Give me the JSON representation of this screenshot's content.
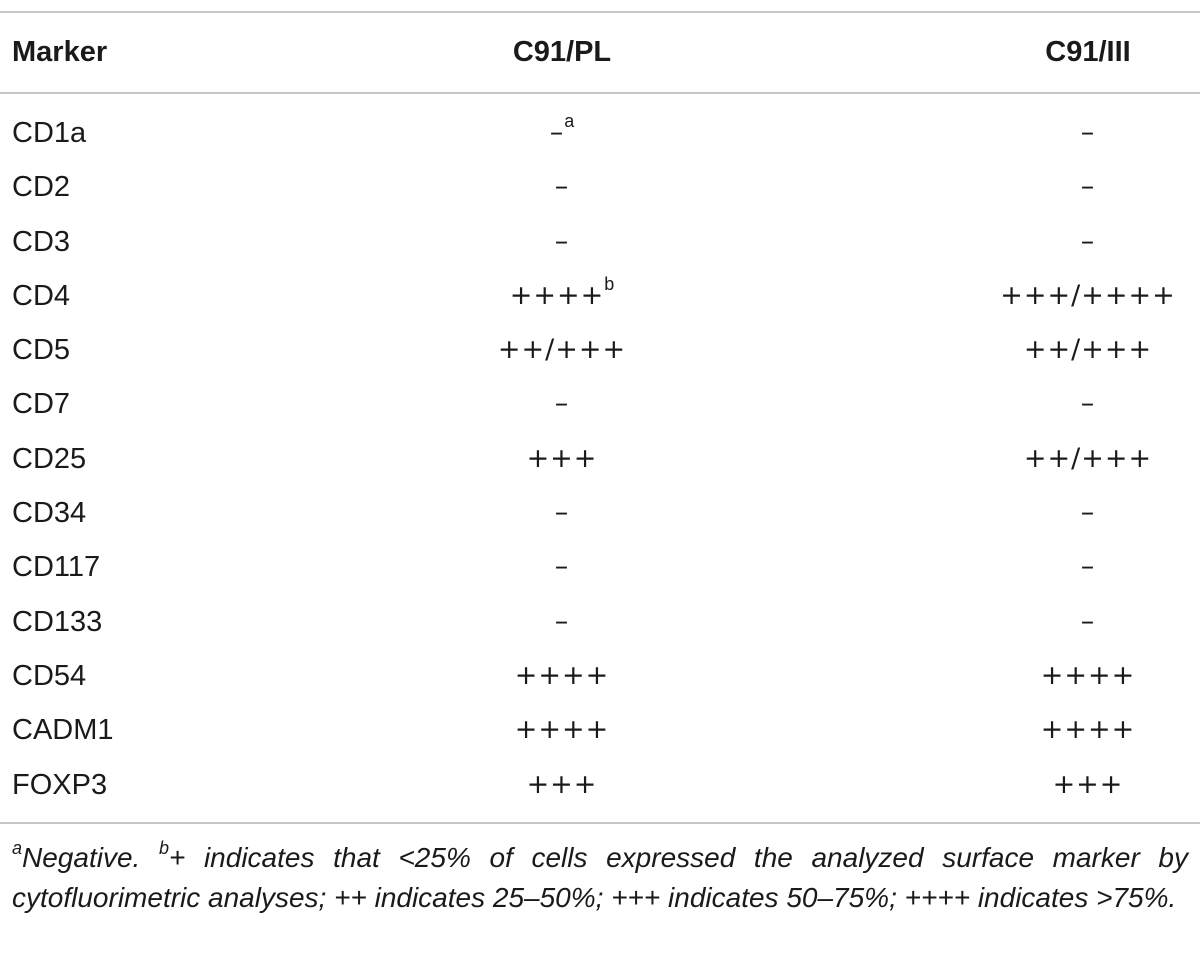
{
  "table": {
    "headers": {
      "marker": "Marker",
      "pl": "C91/PL",
      "iii": "C91/III"
    },
    "rows": [
      {
        "marker": "CD1a",
        "pl": "–",
        "pl_sup": "a",
        "iii": "–"
      },
      {
        "marker": "CD2",
        "pl": "–",
        "iii": "–"
      },
      {
        "marker": "CD3",
        "pl": "–",
        "iii": "–"
      },
      {
        "marker": "CD4",
        "pl": "++++",
        "pl_sup": "b",
        "iii": "+++/++++"
      },
      {
        "marker": "CD5",
        "pl": "++/+++",
        "iii": "++/+++"
      },
      {
        "marker": "CD7",
        "pl": "–",
        "iii": "–"
      },
      {
        "marker": "CD25",
        "pl": "+++",
        "iii": "++/+++"
      },
      {
        "marker": "CD34",
        "pl": "–",
        "iii": "–"
      },
      {
        "marker": "CD117",
        "pl": "–",
        "iii": "–"
      },
      {
        "marker": "CD133",
        "pl": "–",
        "iii": "–"
      },
      {
        "marker": "CD54",
        "pl": "++++",
        "iii": "++++"
      },
      {
        "marker": "CADM1",
        "pl": "++++",
        "iii": "++++"
      },
      {
        "marker": "FOXP3",
        "pl": "+++",
        "iii": "+++"
      }
    ]
  },
  "footnote": {
    "a_mark": "a",
    "a_text": "Negative. ",
    "b_mark": "b",
    "b_text": "+ indicates that <25% of cells expressed the analyzed surface marker by cytofluorimetric analyses; ++ indicates 25–50%; +++ indicates 50–75%; ++++ indicates >75%."
  }
}
